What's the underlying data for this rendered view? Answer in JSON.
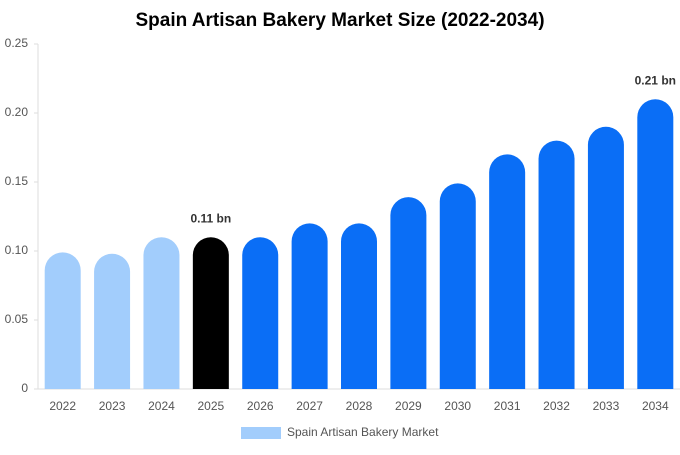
{
  "chart_data": {
    "type": "bar",
    "title": "Spain Artisan Bakery Market Size (2022-2034)",
    "categories": [
      "2022",
      "2023",
      "2024",
      "2025",
      "2026",
      "2027",
      "2028",
      "2029",
      "2030",
      "2031",
      "2032",
      "2033",
      "2034"
    ],
    "series": [
      {
        "name": "Spain Artisan Bakery Market",
        "color": "#a2cdfc",
        "values": [
          0.099,
          0.098,
          0.11,
          0.11,
          0.11,
          0.12,
          0.12,
          0.139,
          0.149,
          0.17,
          0.18,
          0.19,
          0.21
        ],
        "value_labels": [
          null,
          null,
          null,
          "0.11 bn",
          null,
          null,
          null,
          null,
          null,
          null,
          null,
          null,
          "0.21 bn"
        ],
        "colors": [
          "#a2cdfc",
          "#a2cdfc",
          "#a2cdfc",
          "#000000",
          "#0a6ef6",
          "#0a6ef6",
          "#0a6ef6",
          "#0a6ef6",
          "#0a6ef6",
          "#0a6ef6",
          "#0a6ef6",
          "#0a6ef6",
          "#0a6ef6"
        ]
      }
    ],
    "ylim": [
      0,
      0.25
    ],
    "yticks": [
      0,
      0.05,
      {
        "value": 0.1,
        "label": "0.10"
      },
      0.15,
      {
        "value": 0.2,
        "label": "0.20"
      },
      0.25
    ],
    "legend": "bottom"
  }
}
